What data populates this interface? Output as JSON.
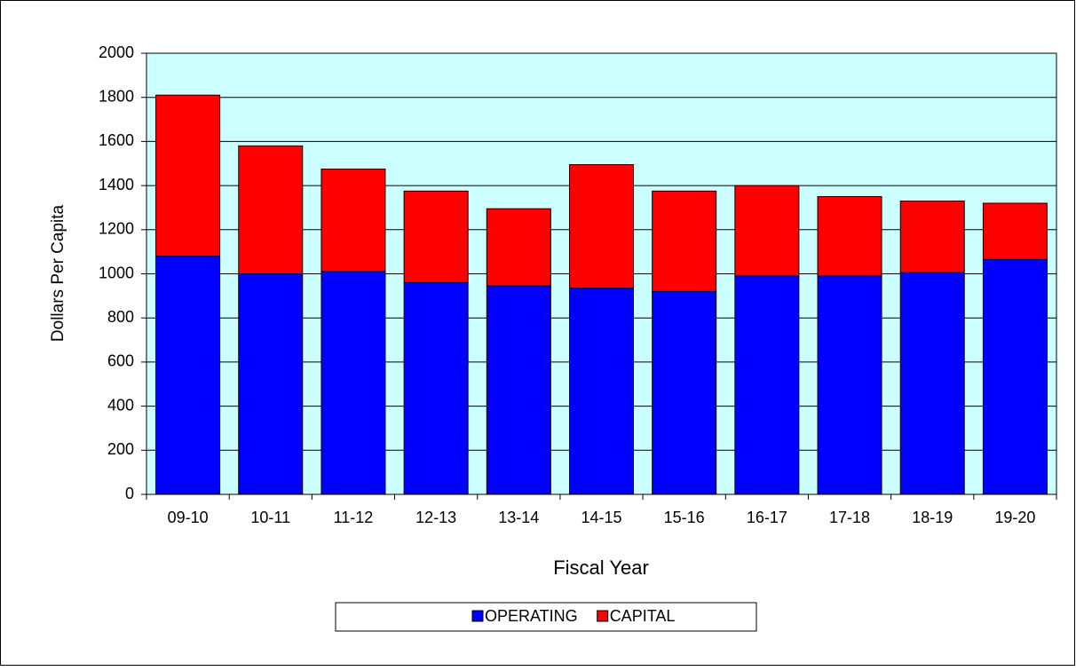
{
  "chart_data": {
    "type": "stacked-bar",
    "x_label": "Fiscal Year",
    "y_label": "Dollars  Per Capita",
    "categories": [
      "09-10",
      "10-11",
      "11-12",
      "12-13",
      "13-14",
      "14-15",
      "15-16",
      "16-17",
      "17-18",
      "18-19",
      "19-20"
    ],
    "series": [
      {
        "name": "OPERATING",
        "color": "#0000ff",
        "values": [
          1080,
          1000,
          1010,
          960,
          945,
          935,
          920,
          990,
          990,
          1005,
          1065
        ]
      },
      {
        "name": "CAPITAL",
        "color": "#ff0000",
        "values": [
          730,
          580,
          465,
          415,
          350,
          560,
          455,
          410,
          360,
          325,
          255
        ]
      }
    ],
    "ylim": [
      0,
      2000
    ],
    "yticks": [
      0,
      200,
      400,
      600,
      800,
      1000,
      1200,
      1400,
      1600,
      1800,
      2000
    ],
    "grid": true,
    "plot_background": "#ccffff",
    "legend": "bottom"
  }
}
